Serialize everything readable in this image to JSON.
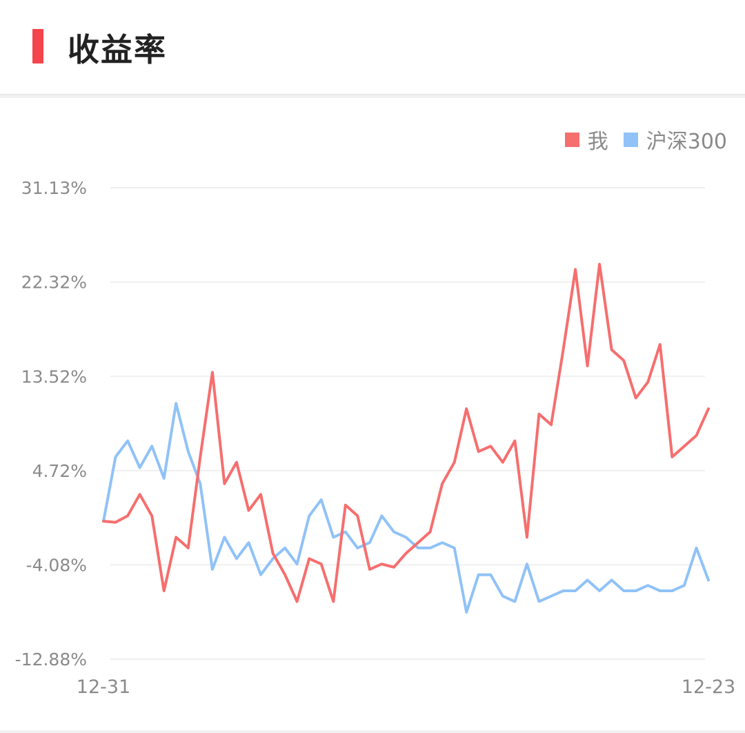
{
  "header": {
    "title": "收益率"
  },
  "colors": {
    "accent": "#f4444c",
    "series_me": "#f66e6e",
    "series_index": "#90c2f7",
    "grid": "#efefef",
    "text": "#8a8a8a"
  },
  "chart_data": {
    "type": "line",
    "title": "收益率",
    "xlabel": "",
    "ylabel": "",
    "x_tick_labels": [
      "12-31",
      "12-23"
    ],
    "y_ticks": [
      "31.13%",
      "22.32%",
      "13.52%",
      "4.72%",
      "-4.08%",
      "-12.88%"
    ],
    "y_tick_values": [
      31.13,
      22.32,
      13.52,
      4.72,
      -4.08,
      -12.88
    ],
    "ylim": [
      -12.88,
      31.13
    ],
    "grid": true,
    "legend_position": "top-right",
    "series": [
      {
        "name": "我",
        "color": "#f66e6e",
        "x": [
          0,
          2,
          4,
          6,
          8,
          10,
          12,
          14,
          16,
          18,
          20,
          22,
          24,
          26,
          28,
          30,
          32,
          34,
          36,
          38,
          40,
          42,
          44,
          46,
          48,
          50,
          52,
          54,
          56,
          58,
          60,
          62,
          64,
          66,
          68,
          70,
          72,
          74,
          76,
          78,
          80,
          82,
          84,
          86,
          88,
          90,
          92,
          94,
          96,
          98,
          100
        ],
        "values": [
          0.0,
          -0.1,
          0.5,
          2.5,
          0.5,
          -6.5,
          -1.5,
          -2.5,
          6.0,
          13.9,
          3.5,
          5.5,
          1.0,
          2.5,
          -3.0,
          -5.0,
          -7.5,
          -3.5,
          -4.0,
          -7.5,
          1.5,
          0.5,
          -4.5,
          -4.0,
          -4.3,
          -3.0,
          -2.0,
          -1.0,
          3.5,
          5.5,
          10.5,
          6.5,
          7.0,
          5.5,
          7.5,
          -1.5,
          10.0,
          9.0,
          16.0,
          23.5,
          14.5,
          24.0,
          16.0,
          15.0,
          11.5,
          13.0,
          16.5,
          6.0,
          7.0,
          8.0,
          10.5
        ]
      },
      {
        "name": "沪深300",
        "color": "#90c2f7",
        "x": [
          0,
          2,
          4,
          6,
          8,
          10,
          12,
          14,
          16,
          18,
          20,
          22,
          24,
          26,
          28,
          30,
          32,
          34,
          36,
          38,
          40,
          42,
          44,
          46,
          48,
          50,
          52,
          54,
          56,
          58,
          60,
          62,
          64,
          66,
          68,
          70,
          72,
          74,
          76,
          78,
          80,
          82,
          84,
          86,
          88,
          90,
          92,
          94,
          96,
          98,
          100
        ],
        "values": [
          0.0,
          6.0,
          7.5,
          5.0,
          7.0,
          4.0,
          11.0,
          6.5,
          3.5,
          -4.5,
          -1.5,
          -3.5,
          -2.0,
          -5.0,
          -3.5,
          -2.5,
          -4.0,
          0.5,
          2.0,
          -1.5,
          -1.0,
          -2.5,
          -2.0,
          0.5,
          -1.0,
          -1.5,
          -2.5,
          -2.5,
          -2.0,
          -2.5,
          -8.5,
          -5.0,
          -5.0,
          -7.0,
          -7.5,
          -4.0,
          -7.5,
          -7.0,
          -6.5,
          -6.5,
          -5.5,
          -6.5,
          -5.5,
          -6.5,
          -6.5,
          -6.0,
          -6.5,
          -6.5,
          -6.0,
          -2.5,
          -5.5
        ]
      }
    ]
  }
}
